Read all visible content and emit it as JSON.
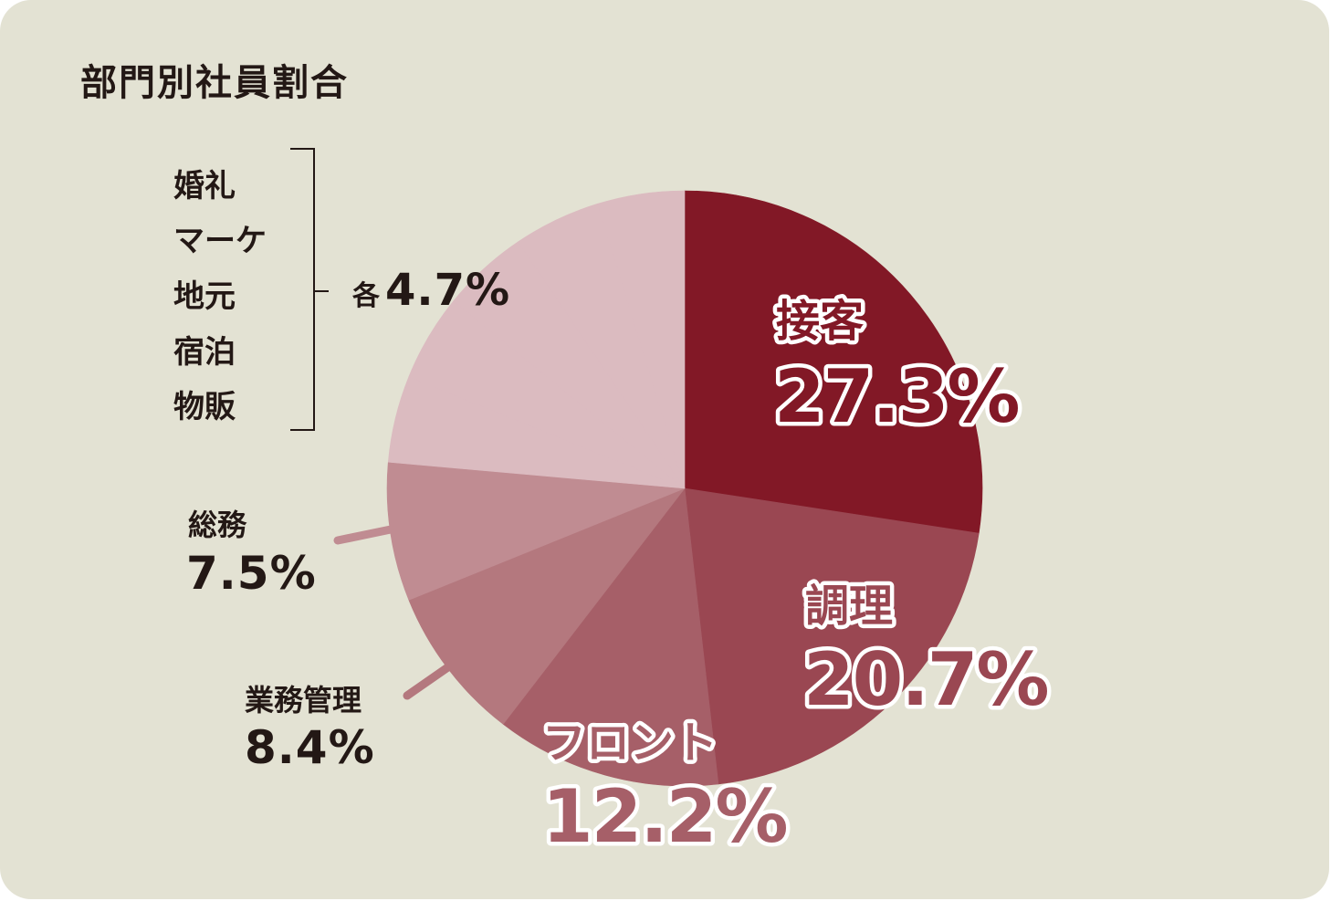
{
  "title": "部門別社員割合",
  "chart_data": {
    "type": "pie",
    "title": "部門別社員割合",
    "slices": [
      {
        "label": "接客",
        "value": 27.3,
        "value_text": "27.3%",
        "color": "#821826"
      },
      {
        "label": "調理",
        "value": 20.7,
        "value_text": "20.7%",
        "color": "#9a4752"
      },
      {
        "label": "フロント",
        "value": 12.2,
        "value_text": "12.2%",
        "color": "#a65f68"
      },
      {
        "label": "業務管理",
        "value": 8.4,
        "value_text": "8.4%",
        "color": "#b4787e"
      },
      {
        "label": "総務",
        "value": 7.5,
        "value_text": "7.5%",
        "color": "#c08c92"
      },
      {
        "label": "婚礼",
        "value": 4.7,
        "color": "#dbbbc0"
      },
      {
        "label": "マーケ",
        "value": 4.7,
        "color": "#dbbbc0"
      },
      {
        "label": "地元",
        "value": 4.7,
        "color": "#dbbbc0"
      },
      {
        "label": "宿泊",
        "value": 4.7,
        "color": "#dbbbc0"
      },
      {
        "label": "物販",
        "value": 4.7,
        "color": "#dbbbc0"
      }
    ],
    "group_label": {
      "members": [
        "婚礼",
        "マーケ",
        "地元",
        "宿泊",
        "物販"
      ],
      "prefix": "各",
      "value_text": "4.7%"
    }
  }
}
